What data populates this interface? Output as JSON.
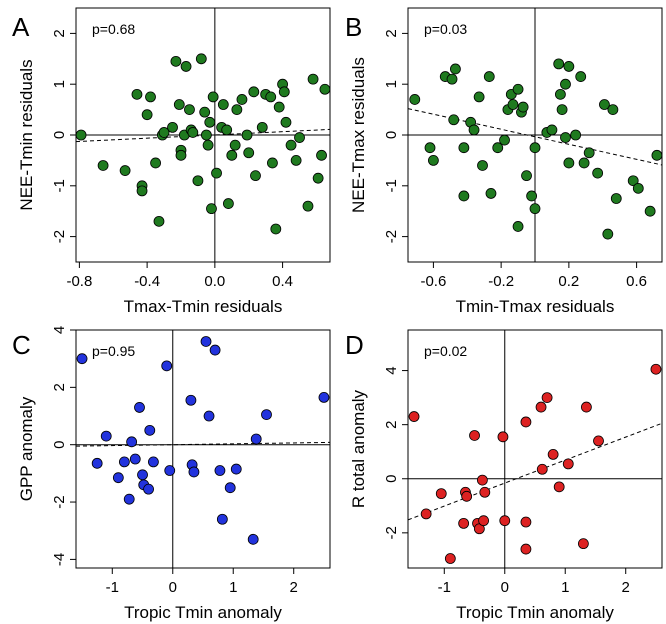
{
  "chart_data": [
    {
      "panel": "A",
      "type": "scatter",
      "annotation": "p=0.68",
      "xlabel": "Tmax-Tmin residuals",
      "ylabel": "NEE-Tmin residuals",
      "xlim": [
        -0.82,
        0.68
      ],
      "ylim": [
        -2.5,
        2.5
      ],
      "xticks": [
        -0.8,
        -0.4,
        0.0,
        0.4
      ],
      "xtick_labels": [
        "-0.8",
        "-0.4",
        "0.0",
        "0.4"
      ],
      "yticks": [
        -2,
        -1,
        0,
        1,
        2
      ],
      "ytick_labels": [
        "-2",
        "-1",
        "0",
        "1",
        "2"
      ],
      "zero_lines": {
        "x": 0,
        "y": 0
      },
      "fit_line": {
        "x": [
          -0.82,
          0.68
        ],
        "y": [
          -0.13,
          0.11
        ]
      },
      "point_color": "#1f7a1f",
      "grid": false,
      "points": [
        {
          "x": -0.79,
          "y": 0.0
        },
        {
          "x": -0.66,
          "y": -0.6
        },
        {
          "x": -0.53,
          "y": -0.7
        },
        {
          "x": -0.46,
          "y": 0.8
        },
        {
          "x": -0.43,
          "y": -1.0
        },
        {
          "x": -0.43,
          "y": -1.1
        },
        {
          "x": -0.4,
          "y": 0.4
        },
        {
          "x": -0.38,
          "y": 0.75
        },
        {
          "x": -0.35,
          "y": -0.55
        },
        {
          "x": -0.33,
          "y": -1.7
        },
        {
          "x": -0.31,
          "y": 0.0
        },
        {
          "x": -0.3,
          "y": 0.05
        },
        {
          "x": -0.25,
          "y": 0.15
        },
        {
          "x": -0.23,
          "y": 1.45
        },
        {
          "x": -0.21,
          "y": 0.6
        },
        {
          "x": -0.2,
          "y": -0.3
        },
        {
          "x": -0.2,
          "y": -0.4
        },
        {
          "x": -0.18,
          "y": 0.0
        },
        {
          "x": -0.17,
          "y": 1.35
        },
        {
          "x": -0.15,
          "y": 0.5
        },
        {
          "x": -0.14,
          "y": 0.1
        },
        {
          "x": -0.13,
          "y": 0.05
        },
        {
          "x": -0.1,
          "y": -0.9
        },
        {
          "x": -0.08,
          "y": 1.5
        },
        {
          "x": -0.06,
          "y": 0.45
        },
        {
          "x": -0.05,
          "y": 0.0
        },
        {
          "x": -0.04,
          "y": -0.2
        },
        {
          "x": -0.03,
          "y": 0.25
        },
        {
          "x": -0.02,
          "y": -1.45
        },
        {
          "x": -0.01,
          "y": 0.75
        },
        {
          "x": 0.01,
          "y": -0.75
        },
        {
          "x": 0.04,
          "y": 0.15
        },
        {
          "x": 0.05,
          "y": 0.6
        },
        {
          "x": 0.07,
          "y": 0.1
        },
        {
          "x": 0.08,
          "y": -1.35
        },
        {
          "x": 0.1,
          "y": -0.4
        },
        {
          "x": 0.12,
          "y": -0.2
        },
        {
          "x": 0.13,
          "y": 0.5
        },
        {
          "x": 0.16,
          "y": 0.7
        },
        {
          "x": 0.19,
          "y": 0.0
        },
        {
          "x": 0.2,
          "y": -0.35
        },
        {
          "x": 0.23,
          "y": 0.85
        },
        {
          "x": 0.24,
          "y": -0.8
        },
        {
          "x": 0.28,
          "y": 0.15
        },
        {
          "x": 0.3,
          "y": 0.8
        },
        {
          "x": 0.33,
          "y": 0.75
        },
        {
          "x": 0.34,
          "y": -0.55
        },
        {
          "x": 0.36,
          "y": -1.85
        },
        {
          "x": 0.38,
          "y": 0.55
        },
        {
          "x": 0.4,
          "y": 1.0
        },
        {
          "x": 0.41,
          "y": 0.85
        },
        {
          "x": 0.42,
          "y": 0.25
        },
        {
          "x": 0.45,
          "y": -0.2
        },
        {
          "x": 0.48,
          "y": -0.5
        },
        {
          "x": 0.5,
          "y": -0.05
        },
        {
          "x": 0.55,
          "y": -1.4
        },
        {
          "x": 0.58,
          "y": 1.1
        },
        {
          "x": 0.61,
          "y": -0.85
        },
        {
          "x": 0.63,
          "y": -0.4
        },
        {
          "x": 0.65,
          "y": 0.9
        }
      ]
    },
    {
      "panel": "B",
      "type": "scatter",
      "annotation": "p=0.03",
      "xlabel": "Tmin-Tmax residuals",
      "ylabel": "NEE-Tmax residuals",
      "xlim": [
        -0.75,
        0.75
      ],
      "ylim": [
        -2.5,
        2.5
      ],
      "xticks": [
        -0.6,
        -0.2,
        0.2,
        0.6
      ],
      "xtick_labels": [
        "-0.6",
        "-0.2",
        "0.2",
        "0.6"
      ],
      "yticks": [
        -2,
        -1,
        0,
        1,
        2
      ],
      "ytick_labels": [
        "-2",
        "-1",
        "0",
        "1",
        "2"
      ],
      "zero_lines": {
        "x": 0,
        "y": 0
      },
      "fit_line": {
        "x": [
          -0.75,
          0.75
        ],
        "y": [
          0.52,
          -0.59
        ]
      },
      "point_color": "#1f7a1f",
      "grid": false,
      "points": [
        {
          "x": -0.71,
          "y": 0.7
        },
        {
          "x": -0.62,
          "y": -0.25
        },
        {
          "x": -0.6,
          "y": -0.5
        },
        {
          "x": -0.53,
          "y": 1.15
        },
        {
          "x": -0.49,
          "y": 1.1
        },
        {
          "x": -0.48,
          "y": 0.3
        },
        {
          "x": -0.47,
          "y": 1.3
        },
        {
          "x": -0.42,
          "y": -0.25
        },
        {
          "x": -0.42,
          "y": -1.2
        },
        {
          "x": -0.38,
          "y": 0.25
        },
        {
          "x": -0.36,
          "y": 0.1
        },
        {
          "x": -0.33,
          "y": 0.75
        },
        {
          "x": -0.31,
          "y": -0.6
        },
        {
          "x": -0.27,
          "y": 1.15
        },
        {
          "x": -0.26,
          "y": -1.15
        },
        {
          "x": -0.22,
          "y": -0.25
        },
        {
          "x": -0.18,
          "y": -0.1
        },
        {
          "x": -0.16,
          "y": 0.5
        },
        {
          "x": -0.14,
          "y": 0.8
        },
        {
          "x": -0.13,
          "y": 0.6
        },
        {
          "x": -0.1,
          "y": 0.9
        },
        {
          "x": -0.1,
          "y": -1.8
        },
        {
          "x": -0.08,
          "y": 0.45
        },
        {
          "x": -0.07,
          "y": 0.55
        },
        {
          "x": -0.05,
          "y": -0.8
        },
        {
          "x": -0.02,
          "y": -1.2
        },
        {
          "x": 0.0,
          "y": -0.25
        },
        {
          "x": 0.0,
          "y": -1.45
        },
        {
          "x": 0.07,
          "y": 0.05
        },
        {
          "x": 0.1,
          "y": 0.1
        },
        {
          "x": 0.14,
          "y": 1.4
        },
        {
          "x": 0.15,
          "y": 0.8
        },
        {
          "x": 0.16,
          "y": 0.5
        },
        {
          "x": 0.18,
          "y": 1.0
        },
        {
          "x": 0.18,
          "y": -0.05
        },
        {
          "x": 0.2,
          "y": 1.35
        },
        {
          "x": 0.2,
          "y": -0.55
        },
        {
          "x": 0.24,
          "y": 0.0
        },
        {
          "x": 0.27,
          "y": 1.15
        },
        {
          "x": 0.29,
          "y": -0.55
        },
        {
          "x": 0.32,
          "y": -0.35
        },
        {
          "x": 0.37,
          "y": -0.75
        },
        {
          "x": 0.41,
          "y": 0.6
        },
        {
          "x": 0.43,
          "y": -1.95
        },
        {
          "x": 0.46,
          "y": 0.5
        },
        {
          "x": 0.48,
          "y": -1.25
        },
        {
          "x": 0.58,
          "y": -0.9
        },
        {
          "x": 0.61,
          "y": -1.05
        },
        {
          "x": 0.68,
          "y": -1.5
        },
        {
          "x": 0.72,
          "y": -0.4
        }
      ]
    },
    {
      "panel": "C",
      "type": "scatter",
      "annotation": "p=0.95",
      "xlabel": "Tropic Tmin anomaly",
      "ylabel": "GPP anomaly",
      "xlim": [
        -1.6,
        2.6
      ],
      "ylim": [
        -4.3,
        4.0
      ],
      "xticks": [
        -1,
        0,
        1,
        2
      ],
      "xtick_labels": [
        "-1",
        "0",
        "1",
        "2"
      ],
      "yticks": [
        -4,
        -2,
        0,
        2,
        4
      ],
      "ytick_labels": [
        "-4",
        "-2",
        "0",
        "2",
        "4"
      ],
      "zero_lines": {
        "x": 0,
        "y": 0
      },
      "fit_line": {
        "x": [
          -1.6,
          2.6
        ],
        "y": [
          -0.05,
          0.08
        ]
      },
      "point_color": "#2233dd",
      "grid": false,
      "points": [
        {
          "x": -1.5,
          "y": 3.0
        },
        {
          "x": -1.25,
          "y": -0.65
        },
        {
          "x": -1.1,
          "y": 0.3
        },
        {
          "x": -0.9,
          "y": -1.15
        },
        {
          "x": -0.8,
          "y": -0.6
        },
        {
          "x": -0.72,
          "y": -1.9
        },
        {
          "x": -0.68,
          "y": 0.1
        },
        {
          "x": -0.62,
          "y": -0.5
        },
        {
          "x": -0.55,
          "y": 1.3
        },
        {
          "x": -0.5,
          "y": -1.05
        },
        {
          "x": -0.48,
          "y": -1.4
        },
        {
          "x": -0.4,
          "y": -1.55
        },
        {
          "x": -0.38,
          "y": 0.5
        },
        {
          "x": -0.32,
          "y": -0.6
        },
        {
          "x": -0.1,
          "y": 2.75
        },
        {
          "x": -0.05,
          "y": -0.9
        },
        {
          "x": 0.3,
          "y": 1.55
        },
        {
          "x": 0.32,
          "y": -0.7
        },
        {
          "x": 0.35,
          "y": -0.95
        },
        {
          "x": 0.55,
          "y": 3.6
        },
        {
          "x": 0.6,
          "y": 1.0
        },
        {
          "x": 0.7,
          "y": 3.3
        },
        {
          "x": 0.78,
          "y": -0.9
        },
        {
          "x": 0.82,
          "y": -2.6
        },
        {
          "x": 0.95,
          "y": -1.5
        },
        {
          "x": 1.05,
          "y": -0.85
        },
        {
          "x": 1.33,
          "y": -3.3
        },
        {
          "x": 1.38,
          "y": 0.2
        },
        {
          "x": 1.55,
          "y": 1.05
        },
        {
          "x": 2.5,
          "y": 1.65
        }
      ]
    },
    {
      "panel": "D",
      "type": "scatter",
      "annotation": "p=0.02",
      "xlabel": "Tropic Tmin anomaly",
      "ylabel": "R total anomaly",
      "xlim": [
        -1.6,
        2.6
      ],
      "ylim": [
        -3.3,
        5.5
      ],
      "xticks": [
        -1,
        0,
        1,
        2
      ],
      "xtick_labels": [
        "-1",
        "0",
        "1",
        "2"
      ],
      "yticks": [
        -2,
        0,
        2,
        4
      ],
      "ytick_labels": [
        "-2",
        "0",
        "2",
        "4"
      ],
      "zero_lines": {
        "x": 0,
        "y": 0
      },
      "fit_line": {
        "x": [
          -1.6,
          2.6
        ],
        "y": [
          -1.52,
          2.05
        ]
      },
      "point_color": "#dd2222",
      "grid": false,
      "points": [
        {
          "x": -1.5,
          "y": 2.3
        },
        {
          "x": -1.3,
          "y": -1.3
        },
        {
          "x": -1.05,
          "y": -0.55
        },
        {
          "x": -0.9,
          "y": -2.95
        },
        {
          "x": -0.68,
          "y": -1.65
        },
        {
          "x": -0.65,
          "y": -0.5
        },
        {
          "x": -0.63,
          "y": -0.65
        },
        {
          "x": -0.5,
          "y": 1.6
        },
        {
          "x": -0.45,
          "y": -1.65
        },
        {
          "x": -0.42,
          "y": -1.85
        },
        {
          "x": -0.37,
          "y": -0.05
        },
        {
          "x": -0.35,
          "y": -1.55
        },
        {
          "x": -0.33,
          "y": -0.5
        },
        {
          "x": -0.03,
          "y": 1.55
        },
        {
          "x": 0.0,
          "y": -1.55
        },
        {
          "x": 0.35,
          "y": 2.1
        },
        {
          "x": 0.35,
          "y": -1.6
        },
        {
          "x": 0.35,
          "y": -2.6
        },
        {
          "x": 0.6,
          "y": 2.65
        },
        {
          "x": 0.62,
          "y": 0.35
        },
        {
          "x": 0.7,
          "y": 3.0
        },
        {
          "x": 0.8,
          "y": 0.9
        },
        {
          "x": 0.9,
          "y": -0.3
        },
        {
          "x": 1.05,
          "y": 0.55
        },
        {
          "x": 1.35,
          "y": 2.65
        },
        {
          "x": 1.3,
          "y": -2.4
        },
        {
          "x": 1.55,
          "y": 1.4
        },
        {
          "x": 2.5,
          "y": 4.05
        }
      ]
    }
  ]
}
